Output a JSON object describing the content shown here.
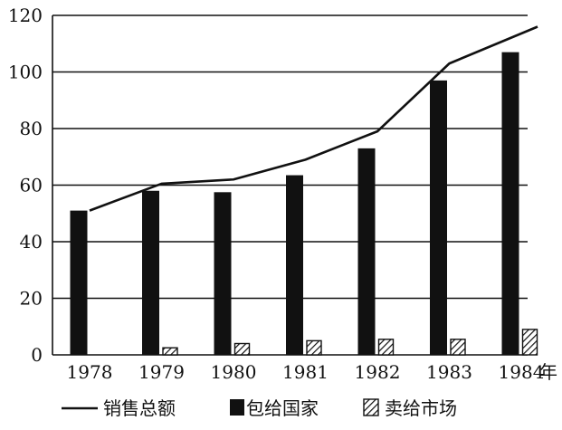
{
  "chart_data": {
    "type": "bar",
    "title": "",
    "xlabel": "年",
    "ylabel": "",
    "categories": [
      "1978",
      "1979",
      "1980",
      "1981",
      "1982",
      "1983",
      "1984"
    ],
    "ylim": [
      0,
      120
    ],
    "yticks": [
      0,
      20,
      40,
      60,
      80,
      100,
      120
    ],
    "grid": true,
    "legend_position": "bottom",
    "series": [
      {
        "name": "销售总额",
        "kind": "line",
        "color": "#111111",
        "values": [
          51,
          60.5,
          62,
          69,
          79,
          103,
          116
        ]
      },
      {
        "name": "包给国家",
        "kind": "bar",
        "color": "#111111",
        "pattern": "solid",
        "values": [
          51,
          58,
          57.5,
          63.5,
          73,
          97,
          107
        ]
      },
      {
        "name": "卖给市场",
        "kind": "bar",
        "color": "#111111",
        "pattern": "hatched",
        "values": [
          0,
          2.5,
          4,
          5,
          5.5,
          5.5,
          9
        ]
      }
    ]
  }
}
